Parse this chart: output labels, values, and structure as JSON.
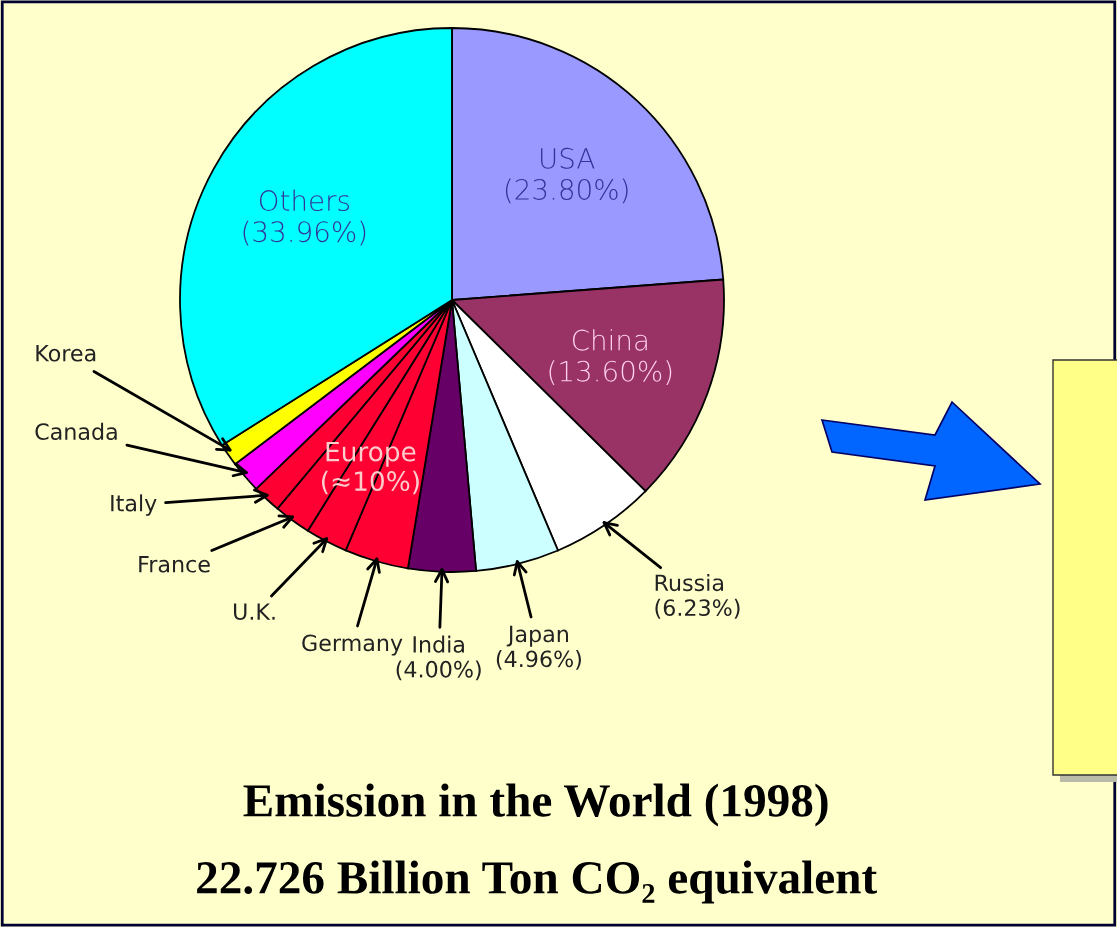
{
  "chart_data": {
    "type": "pie",
    "title": "Emission in the World (1998)",
    "subtitle": "22.726 Billion Ton CO₂ equivalent",
    "categories": [
      "USA",
      "China",
      "Russia",
      "Japan",
      "India",
      "Germany",
      "U.K.",
      "France",
      "Italy",
      "Canada",
      "Korea",
      "Others"
    ],
    "values": [
      23.8,
      13.6,
      6.23,
      4.96,
      4.0,
      3.8,
      2.5,
      2.2,
      1.7,
      1.9,
      1.35,
      33.96
    ],
    "value_labels": [
      "(23.80%)",
      "(13.60%)",
      "(6.23%)",
      "(4.96%)",
      "(4.00%)",
      null,
      null,
      null,
      null,
      null,
      null,
      "(33.96%)"
    ],
    "colors": [
      "#9999ff",
      "#993366",
      "#ffffff",
      "#ccffff",
      "#660066",
      "#ff0033",
      "#ff0033",
      "#ff0033",
      "#ff0033",
      "#ff00ff",
      "#ffff00",
      "#00ffff"
    ],
    "annotations": [
      "Europe\n(≈10%)"
    ],
    "legend": false
  }
}
